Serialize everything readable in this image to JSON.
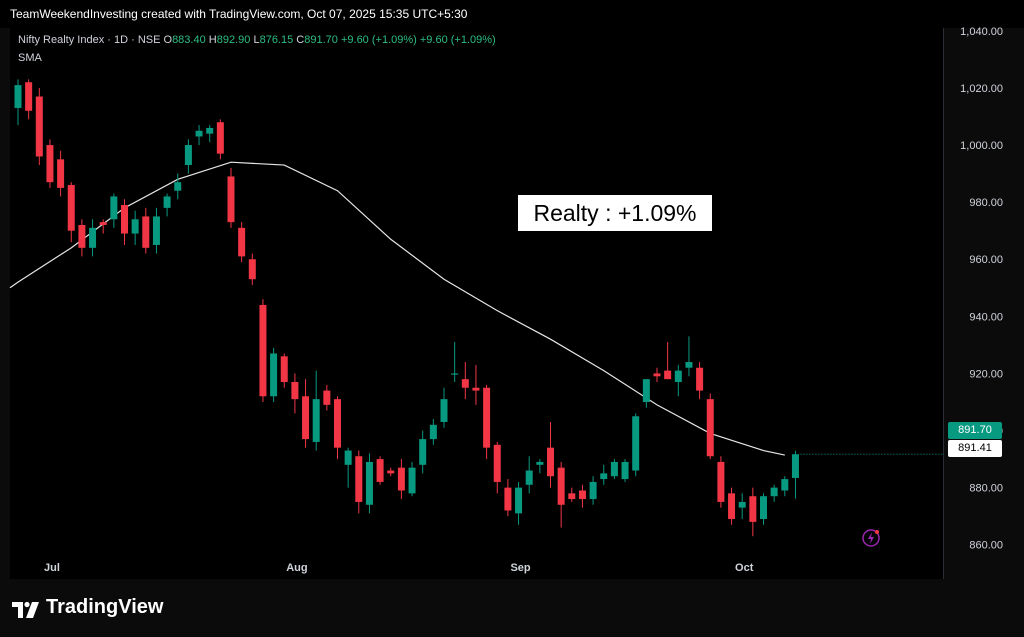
{
  "header": {
    "attribution": "TeamWeekendInvesting created with TradingView.com, Oct 07, 2025 15:35 UTC+5:30"
  },
  "legend": {
    "symbol": "Nifty Realty Index · 1D · NSE",
    "o_label": "O",
    "o_value": "883.40",
    "h_label": "H",
    "h_value": "892.90",
    "l_label": "L",
    "l_value": "876.15",
    "c_label": "C",
    "c_value": "891.70",
    "change": "+9.60 (+1.09%)",
    "change2": "+9.60 (+1.09%)",
    "indicator": "SMA"
  },
  "annotation": "Realty : +1.09%",
  "price_tags": {
    "last": "891.70",
    "sma": "891.41"
  },
  "footer": {
    "brand": "TradingView"
  },
  "colors": {
    "up": "#089981",
    "down": "#f23645",
    "sma": "#e6e6e6",
    "background": "#000000"
  },
  "chart_data": {
    "type": "candlestick",
    "y_ticks": [
      "1,040.00",
      "1,020.00",
      "1,000.00",
      "980.00",
      "960.00",
      "940.00",
      "920.00",
      "900.00",
      "880.00",
      "860.00"
    ],
    "y_tick_values": [
      1040,
      1020,
      1000,
      980,
      960,
      940,
      920,
      900,
      880,
      860
    ],
    "ylim": [
      848,
      1041
    ],
    "x_ticks": [
      {
        "label": "Jul",
        "index": 3
      },
      {
        "label": "Aug",
        "index": 26
      },
      {
        "label": "Sep",
        "index": 47
      },
      {
        "label": "Oct",
        "index": 68
      }
    ],
    "candles": [
      {
        "o": 1013,
        "h": 1023,
        "l": 1007,
        "c": 1021
      },
      {
        "o": 1022,
        "h": 1023,
        "l": 1009,
        "c": 1012
      },
      {
        "o": 1017,
        "h": 1020,
        "l": 993,
        "c": 996
      },
      {
        "o": 1000,
        "h": 1002,
        "l": 985,
        "c": 987
      },
      {
        "o": 995,
        "h": 998,
        "l": 982,
        "c": 985
      },
      {
        "o": 986,
        "h": 987,
        "l": 966,
        "c": 970
      },
      {
        "o": 972,
        "h": 974,
        "l": 961,
        "c": 964
      },
      {
        "o": 964,
        "h": 974,
        "l": 961,
        "c": 971
      },
      {
        "o": 973,
        "h": 974,
        "l": 969,
        "c": 972
      },
      {
        "o": 974,
        "h": 983,
        "l": 971,
        "c": 982
      },
      {
        "o": 979,
        "h": 981,
        "l": 965,
        "c": 969
      },
      {
        "o": 969,
        "h": 977,
        "l": 965,
        "c": 974
      },
      {
        "o": 975,
        "h": 978,
        "l": 962,
        "c": 964
      },
      {
        "o": 965,
        "h": 978,
        "l": 962,
        "c": 975
      },
      {
        "o": 978,
        "h": 983,
        "l": 975,
        "c": 982
      },
      {
        "o": 984,
        "h": 990,
        "l": 981,
        "c": 987
      },
      {
        "o": 993,
        "h": 1002,
        "l": 990,
        "c": 1000
      },
      {
        "o": 1003,
        "h": 1007,
        "l": 1000,
        "c": 1005
      },
      {
        "o": 1004,
        "h": 1007,
        "l": 1001,
        "c": 1006
      },
      {
        "o": 1008,
        "h": 1009,
        "l": 995,
        "c": 997
      },
      {
        "o": 989,
        "h": 992,
        "l": 971,
        "c": 973
      },
      {
        "o": 971,
        "h": 973,
        "l": 959,
        "c": 961
      },
      {
        "o": 960,
        "h": 962,
        "l": 951,
        "c": 953
      },
      {
        "o": 944,
        "h": 946,
        "l": 910,
        "c": 912
      },
      {
        "o": 912,
        "h": 929,
        "l": 910,
        "c": 927
      },
      {
        "o": 926,
        "h": 927,
        "l": 915,
        "c": 917
      },
      {
        "o": 917,
        "h": 920,
        "l": 906,
        "c": 911
      },
      {
        "o": 912,
        "h": 918,
        "l": 894,
        "c": 897
      },
      {
        "o": 896,
        "h": 921,
        "l": 893,
        "c": 911
      },
      {
        "o": 914,
        "h": 916,
        "l": 907,
        "c": 909
      },
      {
        "o": 911,
        "h": 912,
        "l": 890,
        "c": 894
      },
      {
        "o": 888,
        "h": 894,
        "l": 880,
        "c": 893
      },
      {
        "o": 891,
        "h": 893,
        "l": 871,
        "c": 875
      },
      {
        "o": 874,
        "h": 892,
        "l": 871,
        "c": 889
      },
      {
        "o": 890,
        "h": 891,
        "l": 881,
        "c": 882
      },
      {
        "o": 886,
        "h": 887,
        "l": 884,
        "c": 885
      },
      {
        "o": 887,
        "h": 890,
        "l": 876,
        "c": 879
      },
      {
        "o": 878,
        "h": 889,
        "l": 877,
        "c": 887
      },
      {
        "o": 888,
        "h": 900,
        "l": 885,
        "c": 897
      },
      {
        "o": 897,
        "h": 904,
        "l": 895,
        "c": 902
      },
      {
        "o": 903,
        "h": 915,
        "l": 901,
        "c": 911
      },
      {
        "o": 920,
        "h": 931,
        "l": 917,
        "c": 920
      },
      {
        "o": 918,
        "h": 924,
        "l": 911,
        "c": 915
      },
      {
        "o": 915,
        "h": 923,
        "l": 909,
        "c": 914
      },
      {
        "o": 915,
        "h": 916,
        "l": 890,
        "c": 894
      },
      {
        "o": 895,
        "h": 896,
        "l": 878,
        "c": 882
      },
      {
        "o": 880,
        "h": 883,
        "l": 870,
        "c": 872
      },
      {
        "o": 871,
        "h": 882,
        "l": 867,
        "c": 880
      },
      {
        "o": 881,
        "h": 891,
        "l": 878,
        "c": 886
      },
      {
        "o": 888,
        "h": 890,
        "l": 885,
        "c": 889
      },
      {
        "o": 894,
        "h": 903,
        "l": 880,
        "c": 884
      },
      {
        "o": 887,
        "h": 889,
        "l": 866,
        "c": 874
      },
      {
        "o": 878,
        "h": 880,
        "l": 875,
        "c": 876
      },
      {
        "o": 879,
        "h": 881,
        "l": 873,
        "c": 876
      },
      {
        "o": 876,
        "h": 884,
        "l": 874,
        "c": 882
      },
      {
        "o": 883,
        "h": 888,
        "l": 881,
        "c": 885
      },
      {
        "o": 884,
        "h": 890,
        "l": 883,
        "c": 889
      },
      {
        "o": 883,
        "h": 890,
        "l": 882,
        "c": 889
      },
      {
        "o": 886,
        "h": 906,
        "l": 884,
        "c": 905
      },
      {
        "o": 910,
        "h": 917,
        "l": 908,
        "c": 918
      },
      {
        "o": 920,
        "h": 922,
        "l": 917,
        "c": 919
      },
      {
        "o": 921,
        "h": 931,
        "l": 918,
        "c": 918
      },
      {
        "o": 917,
        "h": 923,
        "l": 912,
        "c": 921
      },
      {
        "o": 922,
        "h": 933,
        "l": 919,
        "c": 924
      },
      {
        "o": 922,
        "h": 924,
        "l": 911,
        "c": 914
      },
      {
        "o": 911,
        "h": 913,
        "l": 890,
        "c": 891
      },
      {
        "o": 889,
        "h": 891,
        "l": 873,
        "c": 875
      },
      {
        "o": 878,
        "h": 880,
        "l": 867,
        "c": 869
      },
      {
        "o": 873,
        "h": 878,
        "l": 869,
        "c": 875
      },
      {
        "o": 877,
        "h": 880,
        "l": 863,
        "c": 868
      },
      {
        "o": 869,
        "h": 878,
        "l": 867,
        "c": 877
      },
      {
        "o": 877,
        "h": 881,
        "l": 875,
        "c": 880
      },
      {
        "o": 879,
        "h": 884,
        "l": 877,
        "c": 883
      },
      {
        "o": 883.4,
        "h": 892.9,
        "l": 876.15,
        "c": 891.7
      }
    ],
    "sma": [
      {
        "i": 0,
        "v": 952
      },
      {
        "i": 5,
        "v": 964
      },
      {
        "i": 10,
        "v": 978
      },
      {
        "i": 15,
        "v": 988
      },
      {
        "i": 20,
        "v": 994
      },
      {
        "i": 25,
        "v": 993
      },
      {
        "i": 30,
        "v": 984
      },
      {
        "i": 35,
        "v": 967
      },
      {
        "i": 40,
        "v": 953
      },
      {
        "i": 45,
        "v": 942
      },
      {
        "i": 50,
        "v": 932
      },
      {
        "i": 55,
        "v": 921
      },
      {
        "i": 60,
        "v": 909
      },
      {
        "i": 65,
        "v": 899
      },
      {
        "i": 70,
        "v": 893
      },
      {
        "i": 72,
        "v": 891.4
      }
    ]
  }
}
